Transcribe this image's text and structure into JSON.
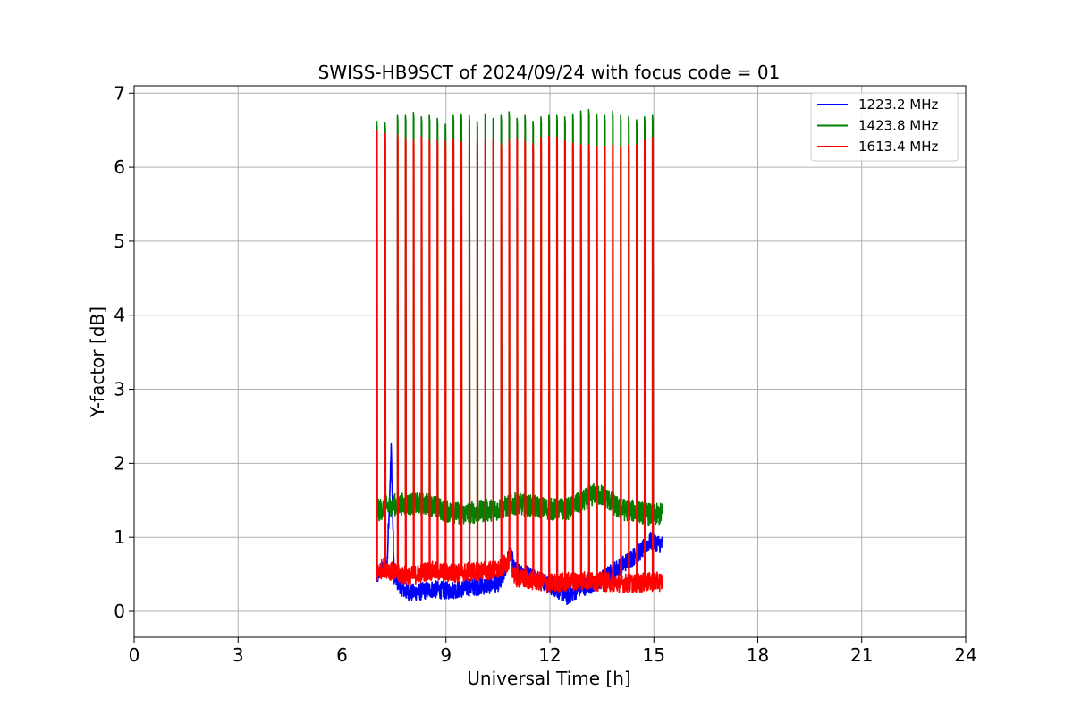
{
  "chart_data": {
    "type": "line",
    "title": "SWISS-HB9SCT of 2024/09/24 with focus code = 01",
    "xlabel": "Universal Time [h]",
    "ylabel": "Y-factor [dB]",
    "xlim": [
      0,
      24
    ],
    "ylim": [
      -0.35,
      7.1
    ],
    "xticks": [
      0,
      3,
      6,
      9,
      12,
      15,
      18,
      21,
      24
    ],
    "yticks": [
      0,
      1,
      2,
      3,
      4,
      5,
      6,
      7
    ],
    "grid": true,
    "legend_position": "top-right",
    "observation_window_h": [
      7.0,
      15.25
    ],
    "calibration_pulse_times_h": [
      7.0,
      7.24,
      7.6,
      7.83,
      8.06,
      8.29,
      8.52,
      8.75,
      8.98,
      9.21,
      9.44,
      9.67,
      9.9,
      10.13,
      10.36,
      10.59,
      10.82,
      11.05,
      11.28,
      11.51,
      11.74,
      11.97,
      12.2,
      12.43,
      12.66,
      12.89,
      13.12,
      13.35,
      13.58,
      13.81,
      14.04,
      14.27,
      14.5,
      14.73,
      14.96
    ],
    "series": [
      {
        "name": "1223.2 MHz",
        "color": "#0000ff",
        "x": [
          7.0,
          7.1,
          7.3,
          7.42,
          7.5,
          7.6,
          7.8,
          8.0,
          8.3,
          8.6,
          9.0,
          9.4,
          9.8,
          10.2,
          10.6,
          10.85,
          11.0,
          11.4,
          11.8,
          12.2,
          12.5,
          12.8,
          13.1,
          13.4,
          13.7,
          14.0,
          14.3,
          14.6,
          14.9,
          15.25
        ],
        "values": [
          0.45,
          0.55,
          0.6,
          2.2,
          0.5,
          0.4,
          0.28,
          0.25,
          0.27,
          0.3,
          0.28,
          0.3,
          0.33,
          0.35,
          0.4,
          0.8,
          0.55,
          0.5,
          0.4,
          0.3,
          0.2,
          0.3,
          0.35,
          0.4,
          0.5,
          0.6,
          0.7,
          0.8,
          0.95,
          0.9
        ]
      },
      {
        "name": "1423.8 MHz",
        "color": "#008000",
        "x": [
          7.0,
          7.2,
          7.6,
          8.0,
          8.5,
          9.0,
          9.5,
          10.0,
          10.5,
          11.0,
          11.5,
          12.0,
          12.5,
          13.0,
          13.3,
          13.6,
          14.0,
          14.5,
          15.0,
          15.25
        ],
        "values": [
          1.35,
          1.4,
          1.45,
          1.45,
          1.45,
          1.35,
          1.32,
          1.35,
          1.38,
          1.45,
          1.42,
          1.38,
          1.38,
          1.5,
          1.6,
          1.55,
          1.38,
          1.35,
          1.3,
          1.32
        ],
        "peak_values": [
          6.62,
          6.6,
          6.7,
          6.7,
          6.74,
          6.68,
          6.7,
          6.66,
          6.58,
          6.7,
          6.72,
          6.7,
          6.62,
          6.72,
          6.66,
          6.7,
          6.75,
          6.66,
          6.7,
          6.62,
          6.68,
          6.7,
          6.7,
          6.68,
          6.72,
          6.76,
          6.78,
          6.72,
          6.7,
          6.76,
          6.7,
          6.68,
          6.64,
          6.68,
          6.7
        ]
      },
      {
        "name": "1613.4 MHz",
        "color": "#ff0000",
        "x": [
          7.0,
          7.2,
          7.6,
          8.0,
          8.5,
          9.0,
          9.5,
          10.0,
          10.5,
          10.85,
          11.0,
          11.5,
          12.0,
          12.5,
          13.0,
          13.5,
          14.0,
          14.5,
          15.0,
          15.25
        ],
        "values": [
          0.5,
          0.6,
          0.5,
          0.48,
          0.55,
          0.52,
          0.52,
          0.55,
          0.55,
          0.7,
          0.45,
          0.42,
          0.38,
          0.4,
          0.42,
          0.4,
          0.38,
          0.38,
          0.4,
          0.4
        ],
        "peak_values": [
          6.5,
          6.45,
          6.44,
          6.4,
          6.38,
          6.42,
          6.38,
          6.36,
          6.35,
          6.38,
          6.34,
          6.3,
          6.34,
          6.38,
          6.38,
          6.32,
          6.38,
          6.4,
          6.36,
          6.32,
          6.4,
          6.42,
          6.4,
          6.35,
          6.32,
          6.3,
          6.3,
          6.28,
          6.28,
          6.3,
          6.28,
          6.3,
          6.3,
          6.36,
          6.4
        ]
      }
    ]
  }
}
